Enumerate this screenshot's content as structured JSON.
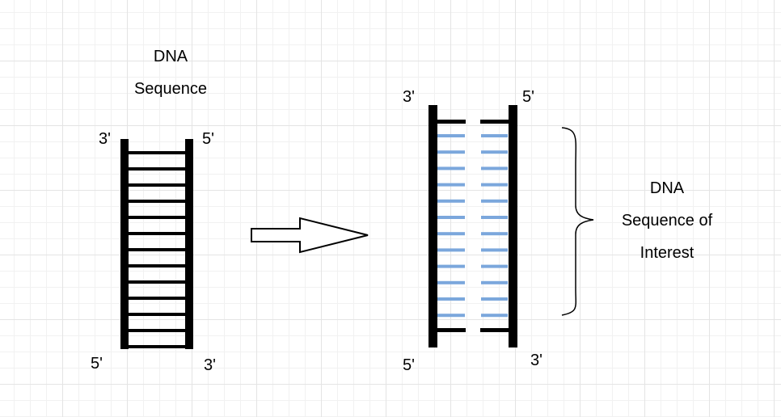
{
  "left_diagram": {
    "title_line1": "DNA",
    "title_line2": "Sequence",
    "label_top_left": "3'",
    "label_top_right": "5'",
    "label_bottom_left": "5'",
    "label_bottom_right": "3'"
  },
  "right_diagram": {
    "label_top_left": "3'",
    "label_top_right": "5'",
    "label_bottom_left": "5'",
    "label_bottom_right": "3'",
    "rung_color": "#7ba7dc",
    "caption_line1": "DNA",
    "caption_line2": "Sequence of",
    "caption_line3": "Interest"
  },
  "colors": {
    "strand": "#000000",
    "grid_major": "#e4e4e4",
    "grid_minor": "#f1f1f1"
  }
}
